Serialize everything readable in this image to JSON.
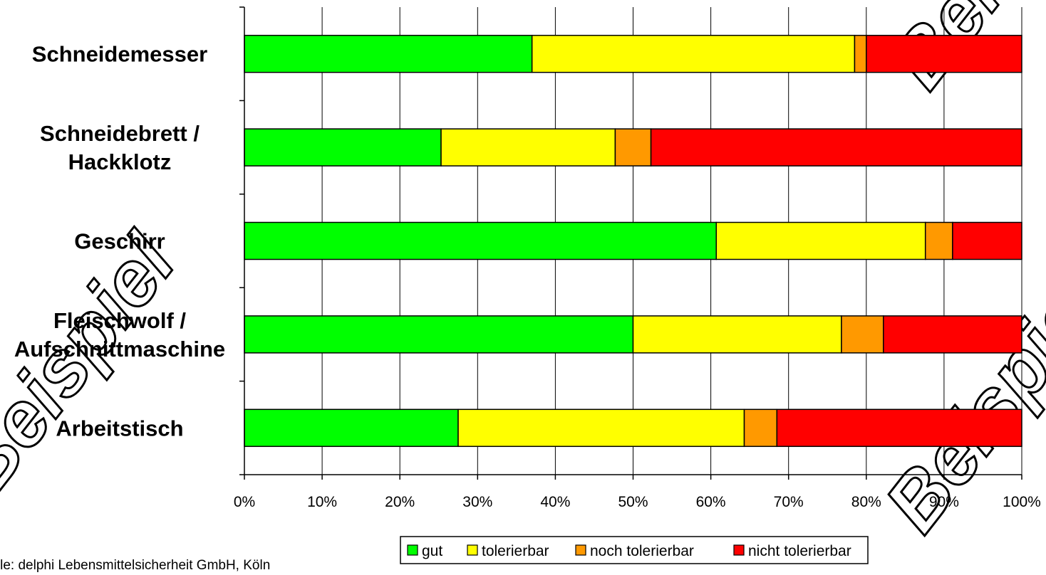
{
  "chart_data": {
    "type": "bar",
    "orientation": "horizontal",
    "stacked": "percent",
    "categories": [
      "Schneidemesser",
      "Schneidebrett /\nHackklotz",
      "Geschirr",
      "Fleischwolf /\nAufschnittmaschine",
      "Arbeitstisch"
    ],
    "category_lines": [
      [
        "Schneidemesser"
      ],
      [
        "Schneidebrett /",
        "Hackklotz"
      ],
      [
        "Geschirr"
      ],
      [
        "Fleischwolf /",
        "Aufschnittmaschine"
      ],
      [
        "Arbeitstisch"
      ]
    ],
    "series": [
      {
        "name": "gut",
        "color": "#00ff00",
        "values": [
          37,
          25.3,
          60.7,
          50,
          27.5
        ]
      },
      {
        "name": "tolerierbar",
        "color": "#ffff00",
        "values": [
          41.5,
          22.4,
          26.9,
          26.8,
          36.8
        ]
      },
      {
        "name": "noch tolerierbar",
        "color": "#ff9900",
        "values": [
          1.5,
          4.6,
          3.5,
          5.4,
          4.2
        ]
      },
      {
        "name": "nicht tolerierbar",
        "color": "#ff0000",
        "values": [
          20,
          47.7,
          8.9,
          17.8,
          31.5
        ]
      }
    ],
    "xlim": [
      0,
      100
    ],
    "x_ticks": [
      "0%",
      "10%",
      "20%",
      "30%",
      "40%",
      "50%",
      "60%",
      "70%",
      "80%",
      "90%",
      "100%"
    ],
    "grid": true,
    "legend_position": "bottom"
  },
  "source_text": "Quelle: delphi Lebensmittelsicherheit GmbH, Köln",
  "watermark": "Beispiel"
}
